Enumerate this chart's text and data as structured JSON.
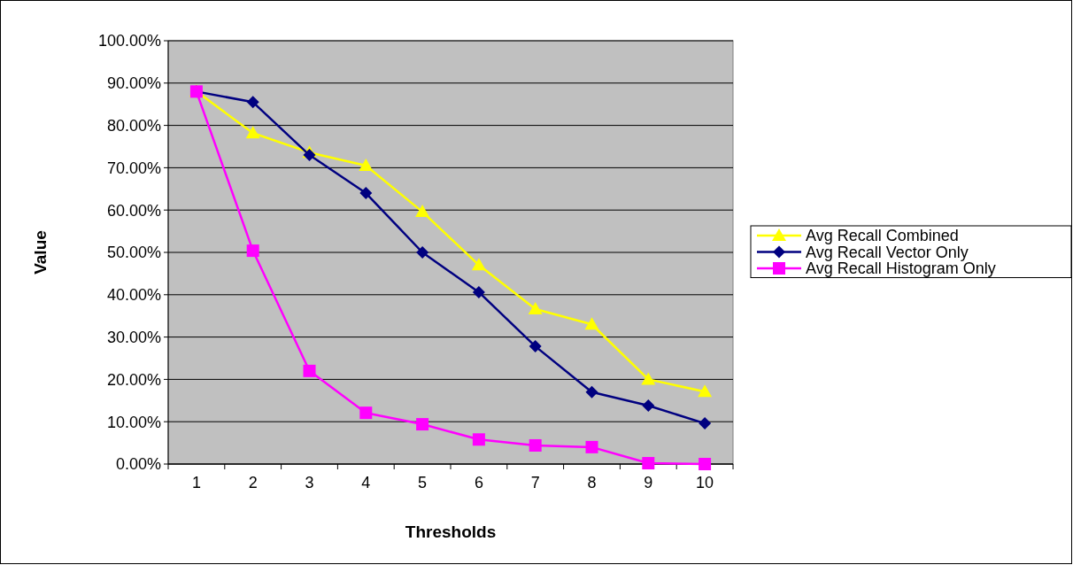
{
  "chart_data": {
    "type": "line",
    "xlabel": "Thresholds",
    "ylabel": "Value",
    "categories": [
      "1",
      "2",
      "3",
      "4",
      "5",
      "6",
      "7",
      "8",
      "9",
      "10"
    ],
    "series": [
      {
        "name": "Avg Recall Combined",
        "color": "#ffff00",
        "marker": "triangle",
        "values": [
          88,
          78.2,
          73.6,
          70.5,
          59.6,
          47,
          36.6,
          33,
          20,
          17.1
        ]
      },
      {
        "name": "Avg Recall Vector Only",
        "color": "#000080",
        "marker": "diamond",
        "values": [
          88,
          85.5,
          73,
          64,
          50,
          40.6,
          27.8,
          17,
          13.8,
          9.6
        ]
      },
      {
        "name": "Avg Recall Histogram Only",
        "color": "#ff00ff",
        "marker": "square",
        "values": [
          88,
          50.4,
          22,
          12.1,
          9.4,
          5.8,
          4.4,
          4,
          0.2,
          0
        ]
      }
    ],
    "ylim": [
      0,
      100
    ],
    "yticks": [
      {
        "value": 0,
        "label": "0.00%"
      },
      {
        "value": 10,
        "label": "10.00%"
      },
      {
        "value": 20,
        "label": "20.00%"
      },
      {
        "value": 30,
        "label": "30.00%"
      },
      {
        "value": 40,
        "label": "40.00%"
      },
      {
        "value": 50,
        "label": "50.00%"
      },
      {
        "value": 60,
        "label": "60.00%"
      },
      {
        "value": 70,
        "label": "70.00%"
      },
      {
        "value": 80,
        "label": "80.00%"
      },
      {
        "value": 90,
        "label": "90.00%"
      },
      {
        "value": 100,
        "label": "100.00%"
      }
    ],
    "grid": "y",
    "legend": "right"
  }
}
